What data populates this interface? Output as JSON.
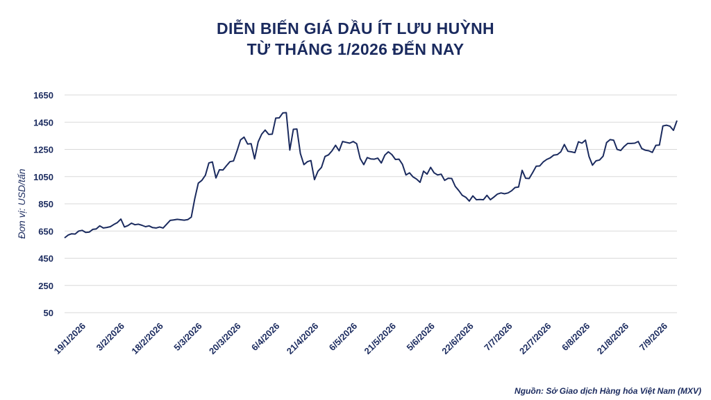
{
  "chart_data": {
    "type": "line",
    "title": [
      "DIỄN BIẾN GIÁ DẦU ÍT LƯU HUỲNH",
      "TỪ THÁNG 1/2026 ĐẾN NAY"
    ],
    "ylabel": "Đơn vị: USD/tấn",
    "source": "Nguồn: Sở Giao dịch Hàng hóa Việt Nam (MXV)",
    "ylim": [
      50,
      1650
    ],
    "yticks": [
      1650,
      1450,
      1250,
      1050,
      850,
      650,
      450,
      250,
      50
    ],
    "xticks": [
      "19/1/2026",
      "3/2/2026",
      "18/2/2026",
      "5/3/2026",
      "20/3/2026",
      "6/4/2026",
      "21/4/2026",
      "6/5/2026",
      "21/5/2026",
      "5/6/2026",
      "22/6/2026",
      "7/7/2026",
      "22/7/2026",
      "6/8/2026",
      "21/8/2026",
      "7/9/2026"
    ],
    "grid": true,
    "line_color": "#1a2a5e",
    "series": [
      {
        "values": [
          600,
          620,
          630,
          628,
          650,
          655,
          640,
          642,
          662,
          665,
          688,
          672,
          676,
          682,
          698,
          712,
          738,
          680,
          690,
          708,
          696,
          700,
          692,
          682,
          688,
          675,
          672,
          680,
          672,
          700,
          728,
          732,
          736,
          733,
          730,
          734,
          752,
          890,
          1002,
          1022,
          1060,
          1150,
          1158,
          1040,
          1100,
          1098,
          1130,
          1160,
          1165,
          1240,
          1320,
          1340,
          1290,
          1292,
          1180,
          1305,
          1362,
          1392,
          1360,
          1362,
          1480,
          1482,
          1518,
          1520,
          1245,
          1398,
          1400,
          1220,
          1138,
          1160,
          1168,
          1028,
          1090,
          1118,
          1198,
          1210,
          1240,
          1280,
          1240,
          1308,
          1302,
          1296,
          1308,
          1292,
          1182,
          1138,
          1190,
          1180,
          1178,
          1186,
          1150,
          1208,
          1232,
          1212,
          1176,
          1178,
          1140,
          1062,
          1078,
          1048,
          1032,
          1008,
          1090,
          1068,
          1118,
          1078,
          1062,
          1068,
          1022,
          1038,
          1036,
          978,
          948,
          912,
          898,
          870,
          908,
          880,
          882,
          880,
          912,
          880,
          900,
          922,
          930,
          924,
          930,
          946,
          970,
          974,
          1096,
          1038,
          1036,
          1080,
          1126,
          1128,
          1158,
          1176,
          1188,
          1208,
          1212,
          1232,
          1286,
          1236,
          1232,
          1226,
          1306,
          1296,
          1318,
          1198,
          1134,
          1166,
          1172,
          1200,
          1300,
          1322,
          1318,
          1250,
          1242,
          1272,
          1294,
          1294,
          1296,
          1308,
          1256,
          1244,
          1240,
          1228,
          1280,
          1282,
          1422,
          1428,
          1420,
          1390,
          1462
        ]
      }
    ]
  }
}
